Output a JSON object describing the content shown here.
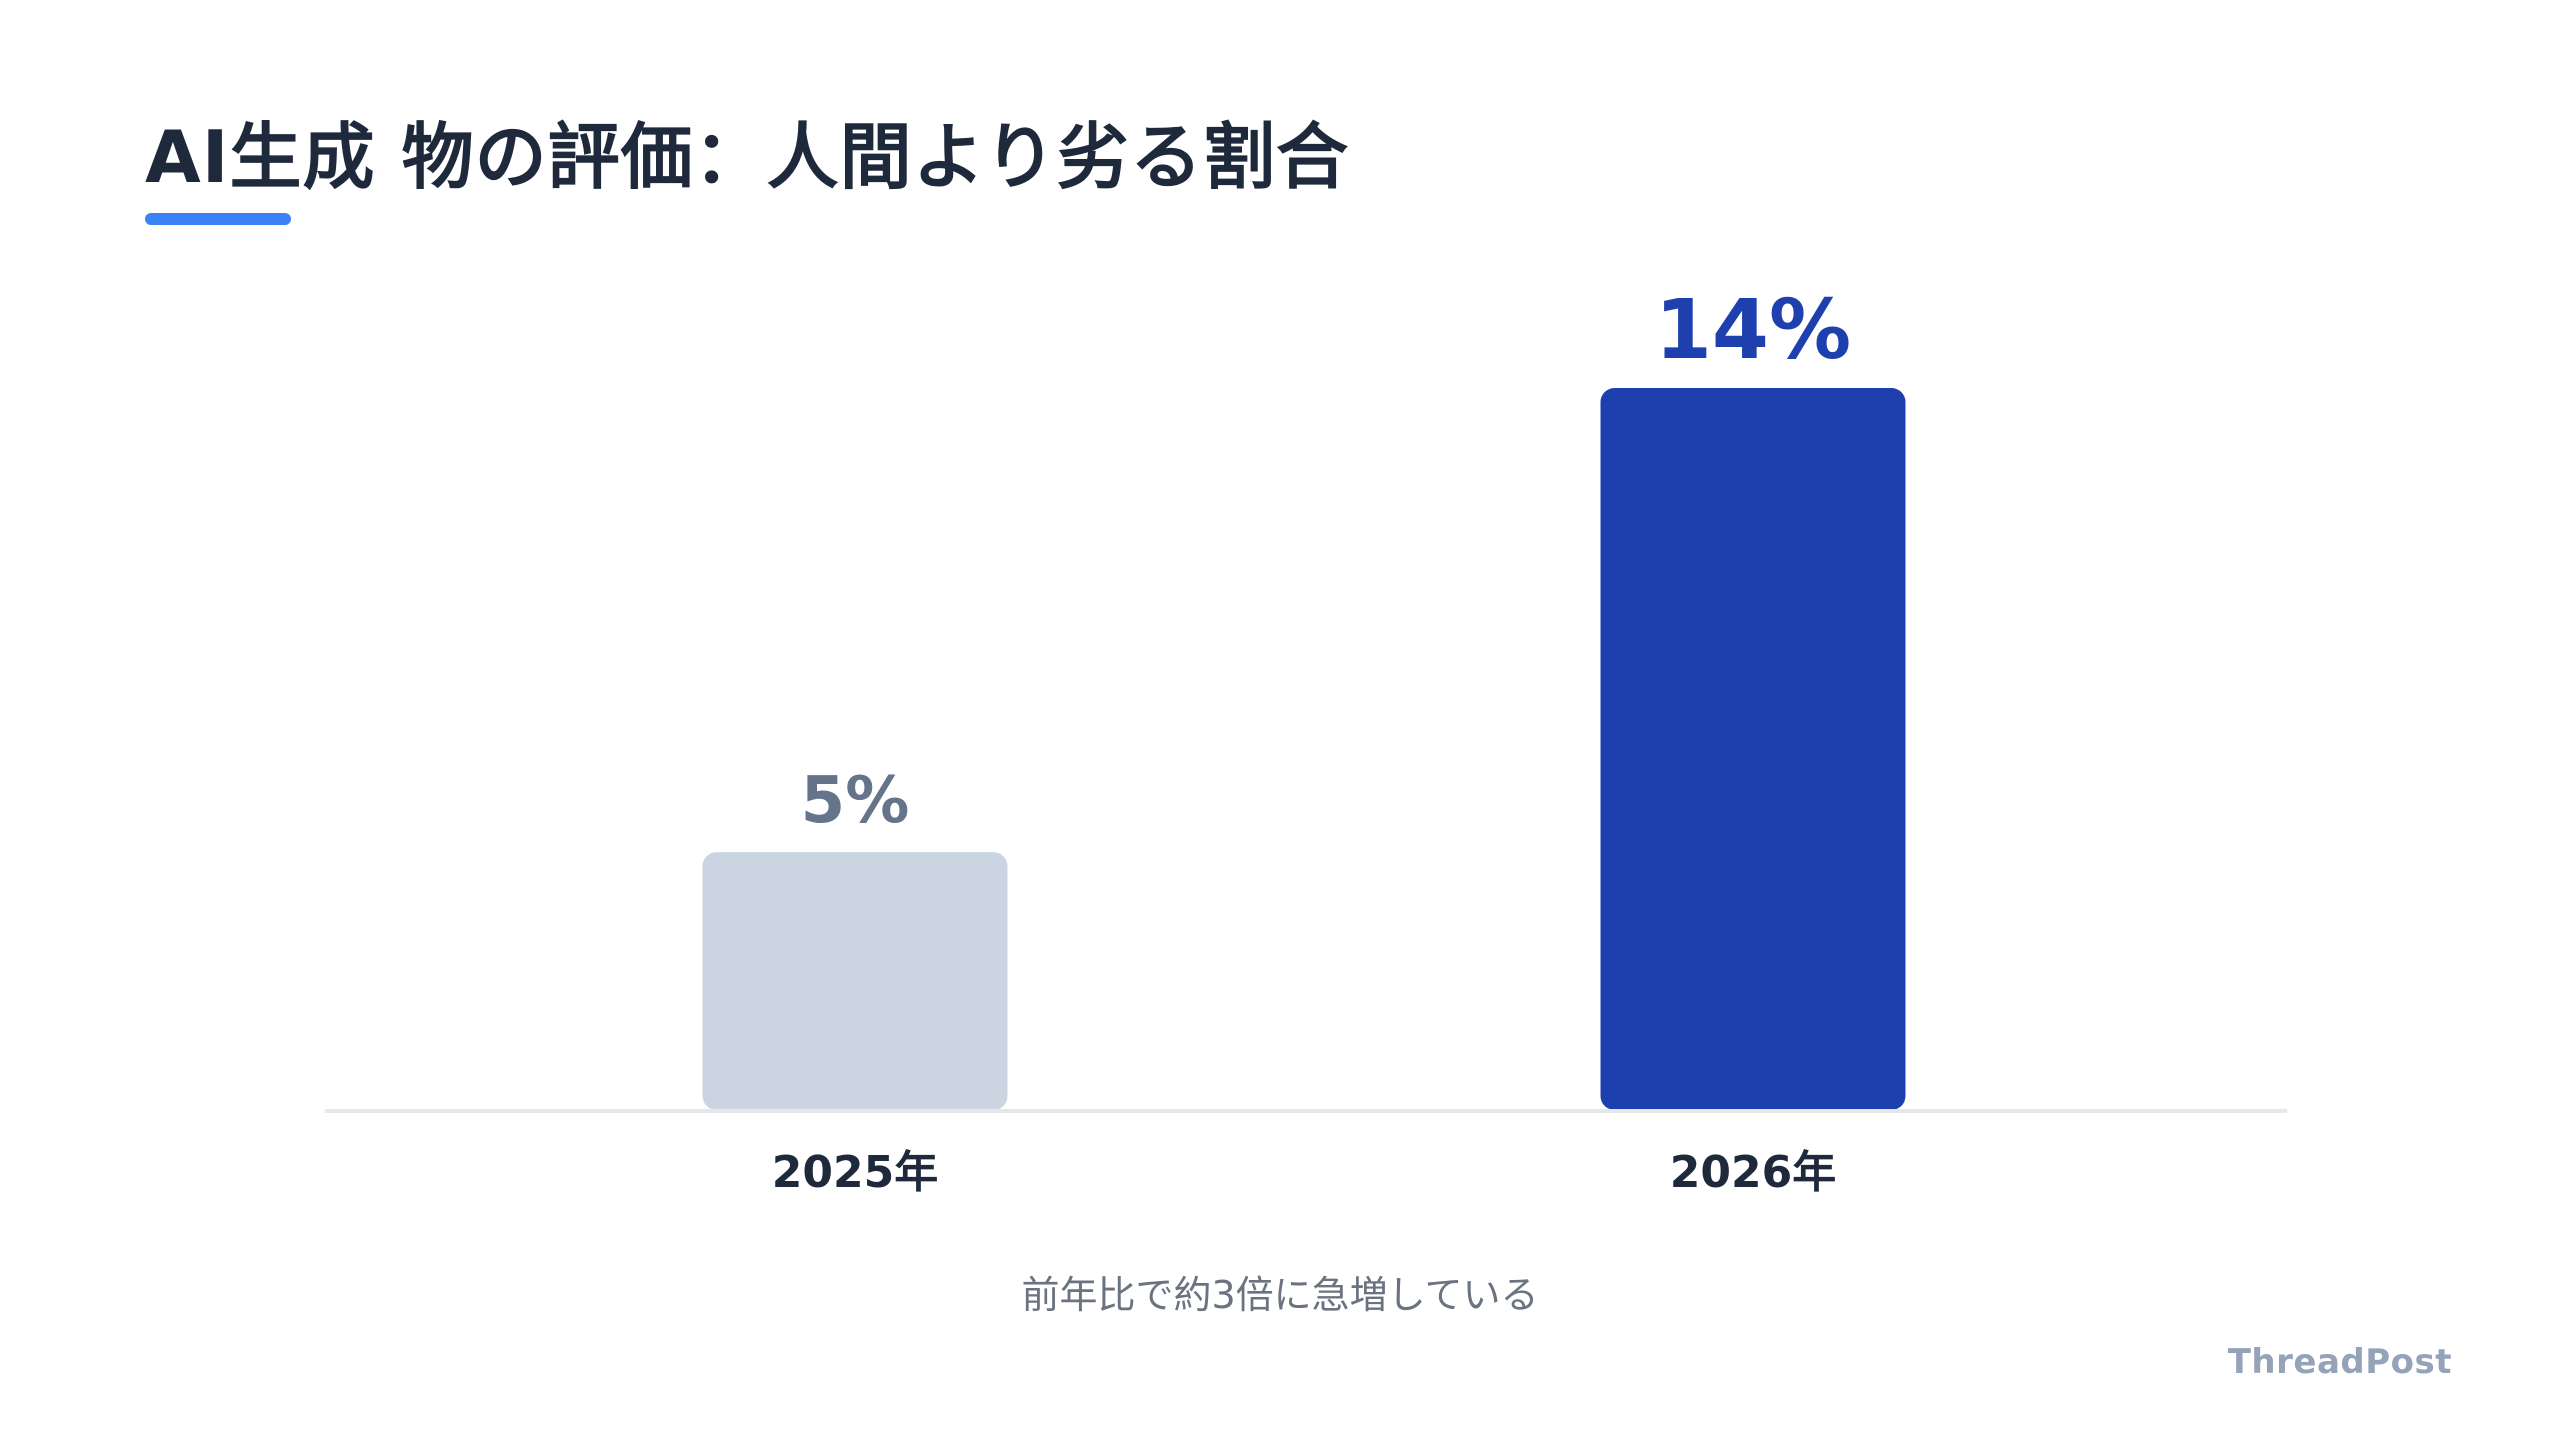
{
  "title": "AI生成 物の評価：人間より劣る割合",
  "subtitle": "前年比で約3倍に急増している",
  "brand": "ThreadPost",
  "colors": {
    "accent": "#3b82f6",
    "bar_2025": "#cbd5e1",
    "bar_2026": "#1e40af",
    "label_2025": "#64748b",
    "label_2026": "#1e40af",
    "axis": "#e5e7eb",
    "category_text": "#1e293b"
  },
  "chart_data": {
    "type": "bar",
    "categories": [
      "2025年",
      "2026年"
    ],
    "values": [
      5,
      14
    ],
    "value_labels": [
      "5%",
      "14%"
    ],
    "unit": "%",
    "ylim": [
      0,
      14
    ],
    "grid": false,
    "legend": "none"
  }
}
